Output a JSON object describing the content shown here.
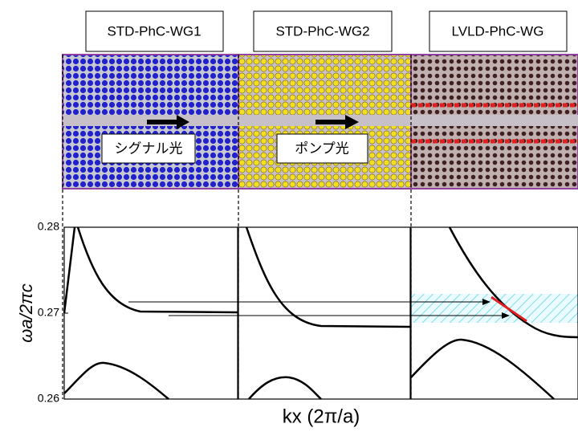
{
  "waveguides": [
    {
      "label": "STD-PhC-WG1"
    },
    {
      "label": "STD-PhC-WG2"
    },
    {
      "label": "LVLD-PhC-WG"
    }
  ],
  "beams": [
    {
      "label": "シグナル光"
    },
    {
      "label": "ポンプ光"
    }
  ],
  "axes": {
    "y_label": "ωa/2πc",
    "x_label": "kx (2π/a)",
    "ylim": [
      0.26,
      0.28
    ],
    "yticks": [
      0.28,
      0.27,
      0.26
    ]
  }
}
